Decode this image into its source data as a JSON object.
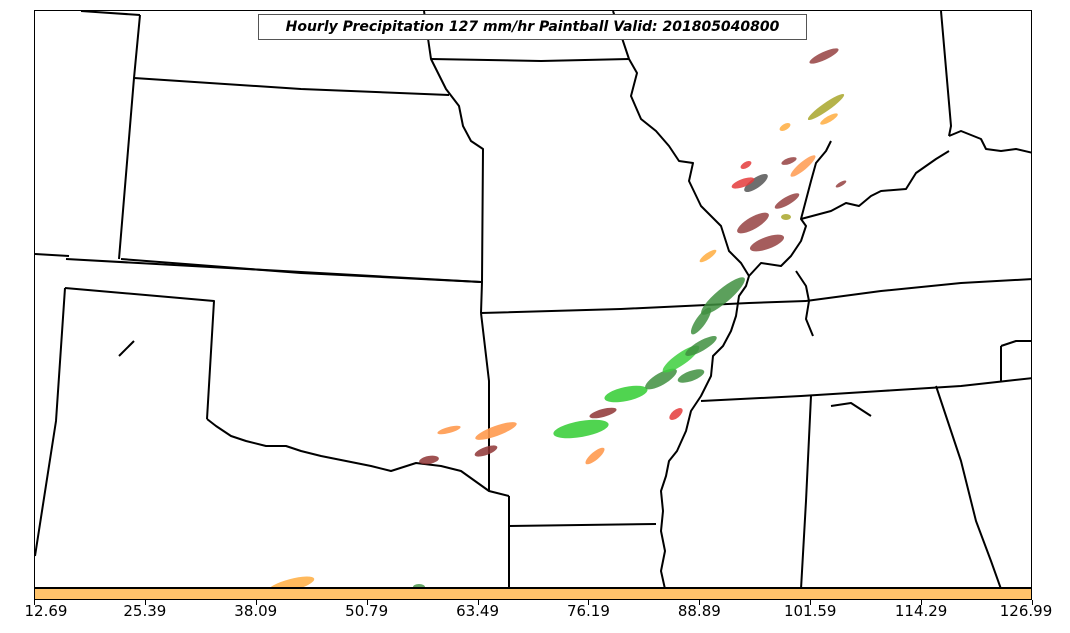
{
  "title": "Hourly Precipitation 127 mm/hr Paintball Valid: 201805040800",
  "colorbar": {
    "color": "#ffc36b",
    "ticks": [
      "12.69",
      "25.39",
      "38.09",
      "50.79",
      "63.49",
      "76.19",
      "88.89",
      "101.59",
      "114.29",
      "126.99"
    ]
  },
  "paintball_colors": {
    "green": "#3dcf3d",
    "dark_green": "#3f8f3f",
    "red": "#e43b3b",
    "dark_red": "#8e3434",
    "orange": "#ff9a4f",
    "light_orange": "#ffb14a",
    "olive": "#a8a62a",
    "gray": "#555555"
  }
}
